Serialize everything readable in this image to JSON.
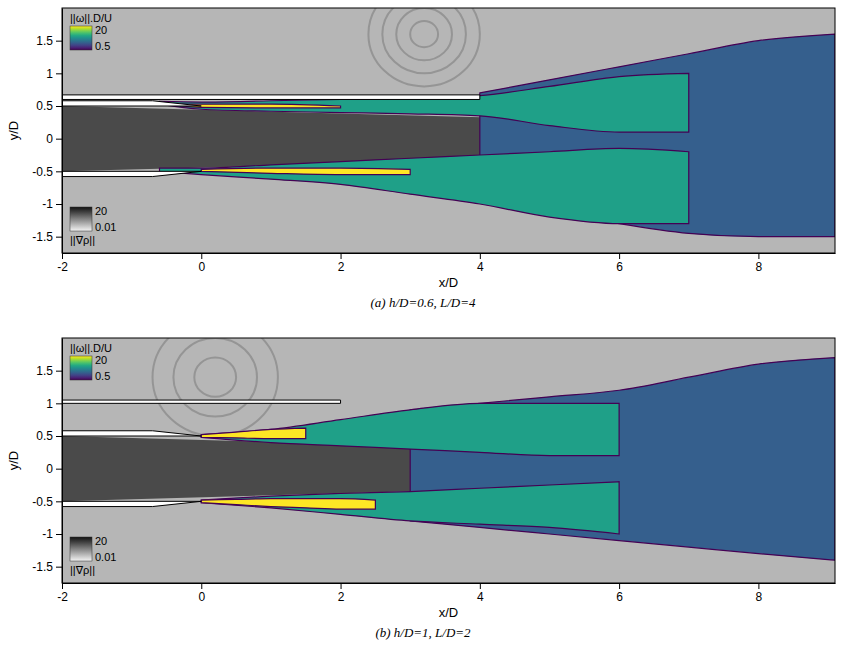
{
  "chart_data": [
    {
      "type": "contour",
      "caption": "(a) h/D=0.6, L/D=4",
      "x_label": "x/D",
      "y_label": "y/D",
      "xlim": [
        -2,
        9.1
      ],
      "ylim": [
        -1.75,
        2.0
      ],
      "xticks": [
        -2,
        0,
        2,
        4,
        6,
        8
      ],
      "yticks": [
        -1.5,
        -1,
        -0.5,
        0,
        0.5,
        1,
        1.5
      ],
      "vorticity_colorbar": {
        "title": "||ω||.D/U",
        "range": [
          0.5,
          20
        ],
        "ticks": [
          0.5,
          20
        ],
        "log": true
      },
      "density_colorbar": {
        "title": "||∇ρ||",
        "range": [
          0.01,
          20
        ],
        "ticks": [
          0.01,
          20
        ],
        "log": true
      },
      "density_bands": [
        {
          "x": [
            -2,
            9.1
          ],
          "y_low": [
            -1.75,
            -1.75
          ],
          "y_high": [
            2.0,
            2.0
          ],
          "value": 0.08
        },
        {
          "x": [
            -2,
            5
          ],
          "y_low": [
            -0.5,
            -0.3
          ],
          "y_high": [
            0.5,
            0.3
          ],
          "value": 3
        }
      ],
      "waves": {
        "center": [
          3.2,
          1.6
        ],
        "radii": [
          0.2,
          0.4,
          0.6,
          0.8
        ],
        "value": 0.5
      },
      "vorticity_bands": [
        {
          "x": [
            4,
            5,
            6,
            7,
            8,
            9.1
          ],
          "y_low": [
            -0.9,
            -1.1,
            -1.3,
            -1.45,
            -1.5,
            -1.5
          ],
          "y_high": [
            0.7,
            0.9,
            1.1,
            1.3,
            1.5,
            1.6
          ],
          "value": 1.5
        },
        {
          "x": [
            -0.6,
            0,
            1,
            2,
            3,
            4,
            5,
            6,
            7
          ],
          "y_low": [
            0.53,
            0.45,
            0.42,
            0.4,
            0.38,
            0.35,
            0.2,
            0.1,
            0.1
          ],
          "y_high": [
            0.57,
            0.56,
            0.58,
            0.6,
            0.62,
            0.66,
            0.8,
            0.95,
            1.0
          ],
          "value": 4
        },
        {
          "x": [
            -0.6,
            0,
            1,
            2,
            3,
            4,
            5,
            6,
            7
          ],
          "y_low": [
            -0.5,
            -0.55,
            -0.62,
            -0.7,
            -0.85,
            -1.0,
            -1.2,
            -1.3,
            -1.3
          ],
          "y_high": [
            -0.45,
            -0.45,
            -0.4,
            -0.35,
            -0.3,
            -0.25,
            -0.2,
            -0.15,
            -0.2
          ],
          "value": 4
        },
        {
          "x": [
            -0.3,
            0,
            1,
            2
          ],
          "y_low": [
            0.5,
            0.48,
            0.47,
            0.47
          ],
          "y_high": [
            0.53,
            0.53,
            0.53,
            0.5
          ],
          "value": 20
        },
        {
          "x": [
            0,
            1,
            2,
            3
          ],
          "y_low": [
            -0.5,
            -0.53,
            -0.55,
            -0.55
          ],
          "y_high": [
            -0.47,
            -0.45,
            -0.45,
            -0.47
          ],
          "value": 20
        }
      ],
      "walls": [
        {
          "x": [
            -2,
            -0.7,
            0,
            -2
          ],
          "y": [
            0.58,
            0.58,
            0.5,
            0.5
          ]
        },
        {
          "x": [
            -2,
            -0.7,
            0,
            -2
          ],
          "y": [
            -0.58,
            -0.58,
            -0.5,
            -0.5
          ]
        },
        {
          "x": [
            -2,
            4,
            4,
            -2
          ],
          "y": [
            0.6,
            0.6,
            0.67,
            0.67
          ]
        }
      ]
    },
    {
      "type": "contour",
      "caption": "(b) h/D=1, L/D=2",
      "x_label": "x/D",
      "y_label": "y/D",
      "xlim": [
        -2,
        9.1
      ],
      "ylim": [
        -1.75,
        2.0
      ],
      "xticks": [
        -2,
        0,
        2,
        4,
        6,
        8
      ],
      "yticks": [
        -1.5,
        -1,
        -0.5,
        0,
        0.5,
        1,
        1.5
      ],
      "vorticity_colorbar": {
        "title": "||ω||.D/U",
        "range": [
          0.5,
          20
        ],
        "ticks": [
          0.5,
          20
        ],
        "log": true
      },
      "density_colorbar": {
        "title": "||∇ρ||",
        "range": [
          0.01,
          20
        ],
        "ticks": [
          0.01,
          20
        ],
        "log": true
      },
      "density_bands": [
        {
          "x": [
            -2,
            9.1
          ],
          "y_low": [
            -1.75,
            -1.75
          ],
          "y_high": [
            2.0,
            2.0
          ],
          "value": 0.08
        },
        {
          "x": [
            -2,
            4.5
          ],
          "y_low": [
            -0.5,
            -0.3
          ],
          "y_high": [
            0.5,
            0.3
          ],
          "value": 3
        }
      ],
      "waves": {
        "center": [
          0.2,
          1.4
        ],
        "radii": [
          0.3,
          0.6,
          0.9
        ],
        "value": 0.5
      },
      "vorticity_bands": [
        {
          "x": [
            3,
            4,
            5,
            6,
            7,
            8,
            9.1
          ],
          "y_low": [
            -0.8,
            -0.9,
            -1.0,
            -1.1,
            -1.2,
            -1.3,
            -1.4
          ],
          "y_high": [
            0.9,
            1.0,
            1.1,
            1.2,
            1.4,
            1.6,
            1.7
          ],
          "value": 1.5
        },
        {
          "x": [
            0,
            1,
            2,
            3,
            4,
            5,
            6
          ],
          "y_low": [
            0.48,
            0.4,
            0.35,
            0.3,
            0.25,
            0.2,
            0.2
          ],
          "y_high": [
            0.52,
            0.6,
            0.75,
            0.9,
            1.0,
            1.0,
            1.0
          ],
          "value": 4
        },
        {
          "x": [
            0,
            1,
            2,
            3,
            4,
            5,
            6
          ],
          "y_low": [
            -0.52,
            -0.6,
            -0.7,
            -0.8,
            -0.85,
            -0.9,
            -1.0
          ],
          "y_high": [
            -0.48,
            -0.42,
            -0.38,
            -0.35,
            -0.3,
            -0.25,
            -0.2
          ],
          "value": 4
        },
        {
          "x": [
            0,
            0.5,
            1,
            1.5
          ],
          "y_low": [
            0.48,
            0.47,
            0.46,
            0.46
          ],
          "y_high": [
            0.52,
            0.56,
            0.6,
            0.62
          ],
          "value": 20
        },
        {
          "x": [
            0,
            0.5,
            1,
            1.5,
            2,
            2.5
          ],
          "y_low": [
            -0.52,
            -0.55,
            -0.58,
            -0.6,
            -0.62,
            -0.62
          ],
          "y_high": [
            -0.48,
            -0.47,
            -0.46,
            -0.46,
            -0.46,
            -0.48
          ],
          "value": 20
        }
      ],
      "walls": [
        {
          "x": [
            -2,
            -0.7,
            0,
            -2
          ],
          "y": [
            0.58,
            0.58,
            0.5,
            0.5
          ]
        },
        {
          "x": [
            -2,
            -0.7,
            0,
            -2
          ],
          "y": [
            -0.58,
            -0.58,
            -0.5,
            -0.5
          ]
        },
        {
          "x": [
            -2,
            2,
            2,
            -2
          ],
          "y": [
            1.0,
            1.0,
            1.05,
            1.05
          ]
        }
      ]
    }
  ]
}
